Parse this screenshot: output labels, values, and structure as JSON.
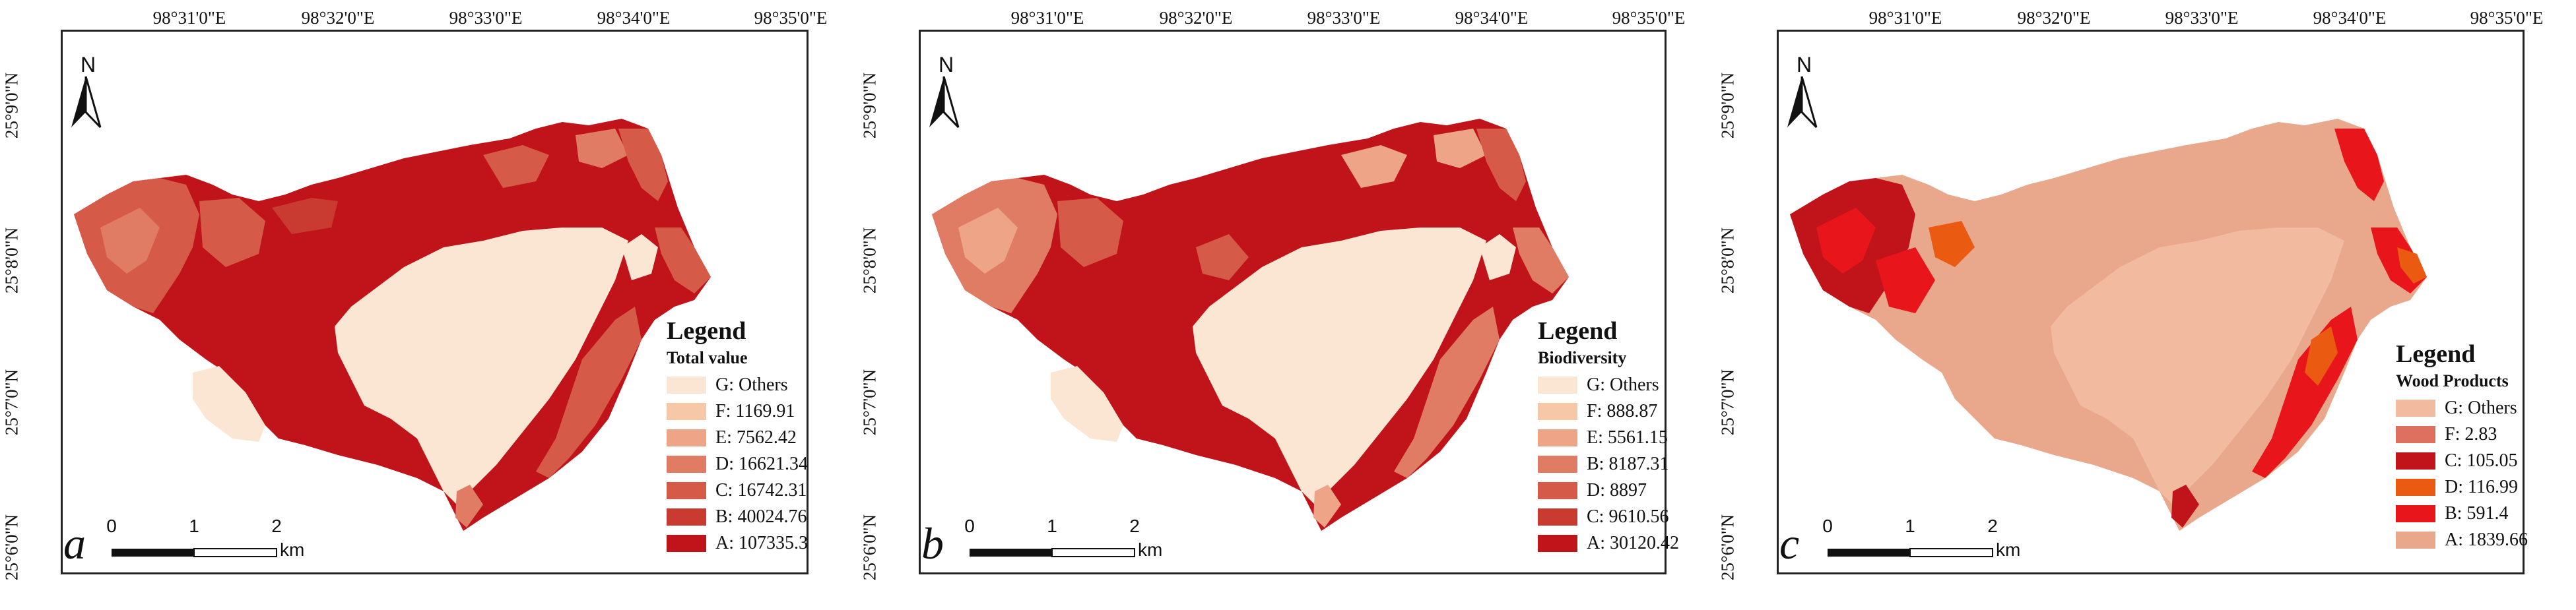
{
  "lon_labels": [
    "98°31'0\"E",
    "98°32'0\"E",
    "98°33'0\"E",
    "98°34'0\"E",
    "98°35'0\"E"
  ],
  "lat_labels": [
    "25°9'0\"N",
    "25°8'0\"N",
    "25°7'0\"N",
    "25°6'0\"N"
  ],
  "north_label": "N",
  "scale": {
    "ticks": [
      "0",
      "1",
      "2"
    ],
    "unit": "km"
  },
  "legend_title": "Legend",
  "panels": [
    {
      "letter": "a",
      "legend_subtitle": "Total value",
      "legend": [
        {
          "label": "G: Others",
          "color": "#fbe6d3"
        },
        {
          "label": "F: 1169.91",
          "color": "#f6c8a8"
        },
        {
          "label": "E: 7562.42",
          "color": "#eea486"
        },
        {
          "label": "D: 16621.34",
          "color": "#e07c64"
        },
        {
          "label": "C: 16742.31",
          "color": "#d65a48"
        },
        {
          "label": "B: 40024.76",
          "color": "#c93a30"
        },
        {
          "label": "A: 107335.3",
          "color": "#c0141a"
        }
      ]
    },
    {
      "letter": "b",
      "legend_subtitle": "Biodiversity",
      "legend": [
        {
          "label": "G: Others",
          "color": "#fbe6d3"
        },
        {
          "label": "F: 888.87",
          "color": "#f6c8a8"
        },
        {
          "label": "E: 5561.15",
          "color": "#eea486"
        },
        {
          "label": "B: 8187.31",
          "color": "#e07c64"
        },
        {
          "label": "D: 8897",
          "color": "#d65a48"
        },
        {
          "label": "C: 9610.56",
          "color": "#c93a30"
        },
        {
          "label": "A: 30120.42",
          "color": "#c0141a"
        }
      ]
    },
    {
      "letter": "c",
      "legend_subtitle": "Wood Products",
      "legend": [
        {
          "label": "G: Others",
          "color": "#f2bba0"
        },
        {
          "label": "F: 2.83",
          "color": "#de7060"
        },
        {
          "label": "C: 105.05",
          "color": "#c0141a"
        },
        {
          "label": "D: 116.99",
          "color": "#ea5a10"
        },
        {
          "label": "B: 591.4",
          "color": "#e8151a"
        },
        {
          "label": "A: 1839.66",
          "color": "#e9a88c"
        }
      ]
    }
  ]
}
